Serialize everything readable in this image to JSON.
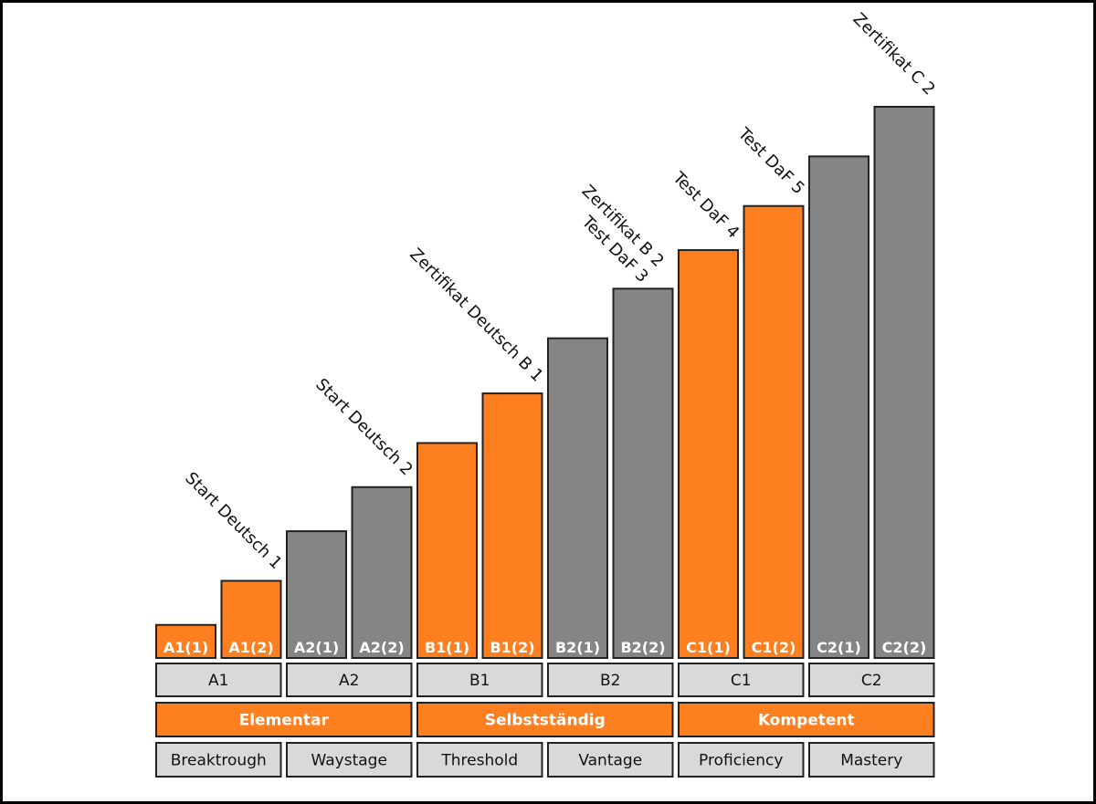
{
  "chart_data": {
    "type": "bar",
    "title": "",
    "xlabel": "",
    "ylabel": "",
    "ylim": [
      0,
      100
    ],
    "grid": false,
    "categories": [
      "A1(1)",
      "A1(2)",
      "A2(1)",
      "A2(2)",
      "B1(1)",
      "B1(2)",
      "B2(1)",
      "B2(2)",
      "C1(1)",
      "C1(2)",
      "C2(1)",
      "C2(2)"
    ],
    "values": [
      6,
      14,
      23,
      31,
      39,
      48,
      58,
      67,
      74,
      82,
      91,
      100
    ],
    "bar_colors": [
      "#fd7f20",
      "#fd7f20",
      "#858585",
      "#858585",
      "#fd7f20",
      "#fd7f20",
      "#858585",
      "#858585",
      "#fd7f20",
      "#fd7f20",
      "#858585",
      "#858585"
    ],
    "annotations": [
      {
        "bar": 1,
        "lines": [
          "Start Deutsch 1"
        ]
      },
      {
        "bar": 3,
        "lines": [
          "Start Deutsch 2"
        ]
      },
      {
        "bar": 5,
        "lines": [
          "Zertifikat Deutsch B 1"
        ]
      },
      {
        "bar": 7,
        "lines": [
          "Zertifikat B 2",
          "Test DaF 3"
        ]
      },
      {
        "bar": 8,
        "lines": [
          "Test DaF 4"
        ]
      },
      {
        "bar": 9,
        "lines": [
          "Test DaF 5"
        ]
      },
      {
        "bar": 11,
        "lines": [
          "Zertifikat C 2"
        ]
      }
    ],
    "levels": [
      "A1",
      "A2",
      "B1",
      "B2",
      "C1",
      "C2"
    ],
    "groups": [
      "Elementar",
      "Selbstständig",
      "Kompetent"
    ],
    "descriptors": [
      "Breaktrough",
      "Waystage",
      "Threshold",
      "Vantage",
      "Proficiency",
      "Mastery"
    ]
  },
  "colors": {
    "orange": "#fd7f20",
    "gray": "#858585",
    "light": "#d9d9d9",
    "stroke": "#222222"
  }
}
